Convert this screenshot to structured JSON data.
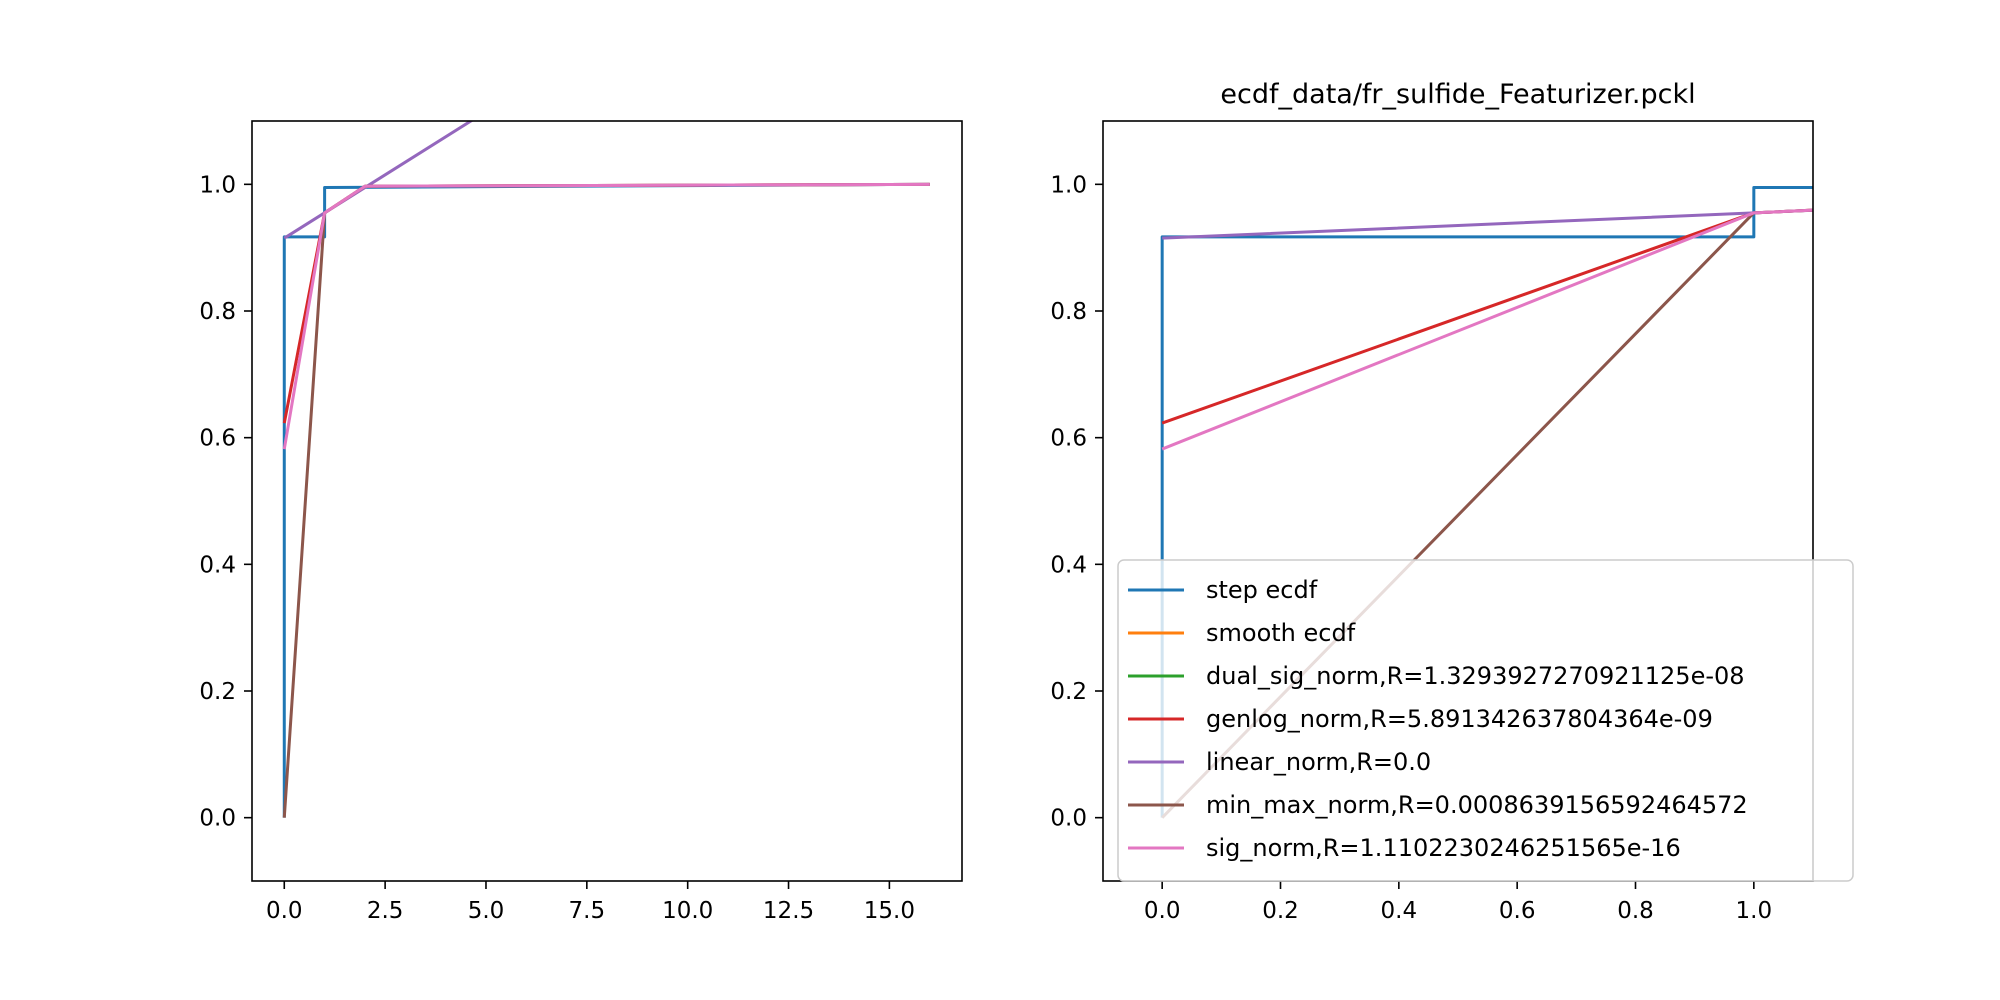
{
  "chart_data": [
    {
      "type": "line",
      "title": "",
      "xlabel": "",
      "ylabel": "",
      "xlim": [
        -0.8,
        16.8
      ],
      "ylim": [
        -0.1,
        1.1
      ],
      "xticks": [
        "0.0",
        "2.5",
        "5.0",
        "7.5",
        "10.0",
        "12.5",
        "15.0"
      ],
      "yticks": [
        "0.0",
        "0.2",
        "0.4",
        "0.6",
        "0.8",
        "1.0"
      ],
      "grid": false,
      "series": [
        {
          "name": "step ecdf",
          "color": "#1f77b4",
          "style": "step",
          "x": [
            0,
            0,
            1,
            1,
            16
          ],
          "y": [
            0.0,
            0.917,
            0.917,
            0.995,
            1.0
          ]
        },
        {
          "name": "smooth ecdf",
          "color": "#ff7f0e",
          "x": [],
          "y": []
        },
        {
          "name": "dual_sig_norm,R=1.3293927270921125e-08",
          "color": "#2ca02c",
          "x": [],
          "y": []
        },
        {
          "name": "genlog_norm,R=5.891342637804364e-09",
          "color": "#d62728",
          "x": [
            0,
            1,
            2,
            16
          ],
          "y": [
            0.623,
            0.955,
            0.997,
            1.0
          ]
        },
        {
          "name": "linear_norm,R=0.0",
          "color": "#9467bd",
          "x": [
            0,
            1,
            6
          ],
          "y": [
            0.915,
            0.955,
            1.155
          ]
        },
        {
          "name": "min_max_norm,R=0.0008639156592464572",
          "color": "#8c564b",
          "x": [
            0,
            1,
            2,
            16
          ],
          "y": [
            0.0,
            0.955,
            0.997,
            1.0
          ]
        },
        {
          "name": "sig_norm,R=1.1102230246251565e-16",
          "color": "#e377c2",
          "x": [
            0,
            1,
            2,
            16
          ],
          "y": [
            0.582,
            0.955,
            0.997,
            1.0
          ]
        }
      ]
    },
    {
      "type": "line",
      "title": "ecdf_data/fr_sulfide_Featurizer.pckl",
      "xlabel": "",
      "ylabel": "",
      "xlim": [
        -0.1,
        1.1
      ],
      "ylim": [
        -0.1,
        1.1
      ],
      "xticks": [
        "0.0",
        "0.2",
        "0.4",
        "0.6",
        "0.8",
        "1.0"
      ],
      "yticks": [
        "0.0",
        "0.2",
        "0.4",
        "0.6",
        "0.8",
        "1.0"
      ],
      "grid": false,
      "legend": "lower-right",
      "series": [
        {
          "name": "step ecdf",
          "color": "#1f77b4",
          "style": "step",
          "x": [
            0,
            0,
            1,
            1,
            1.2
          ],
          "y": [
            0.0,
            0.917,
            0.917,
            0.995,
            0.995
          ]
        },
        {
          "name": "smooth ecdf",
          "color": "#ff7f0e",
          "x": [],
          "y": []
        },
        {
          "name": "dual_sig_norm,R=1.3293927270921125e-08",
          "color": "#2ca02c",
          "x": [],
          "y": []
        },
        {
          "name": "genlog_norm,R=5.891342637804364e-09",
          "color": "#d62728",
          "x": [
            0,
            1,
            2
          ],
          "y": [
            0.623,
            0.955,
            0.997
          ]
        },
        {
          "name": "linear_norm,R=0.0",
          "color": "#9467bd",
          "x": [
            0,
            1,
            2
          ],
          "y": [
            0.915,
            0.955,
            0.995
          ]
        },
        {
          "name": "min_max_norm,R=0.0008639156592464572",
          "color": "#8c564b",
          "x": [
            0,
            1,
            2
          ],
          "y": [
            0.0,
            0.955,
            0.997
          ]
        },
        {
          "name": "sig_norm,R=1.1102230246251565e-16",
          "color": "#e377c2",
          "x": [
            0,
            1,
            2
          ],
          "y": [
            0.582,
            0.955,
            0.997
          ]
        }
      ]
    }
  ]
}
